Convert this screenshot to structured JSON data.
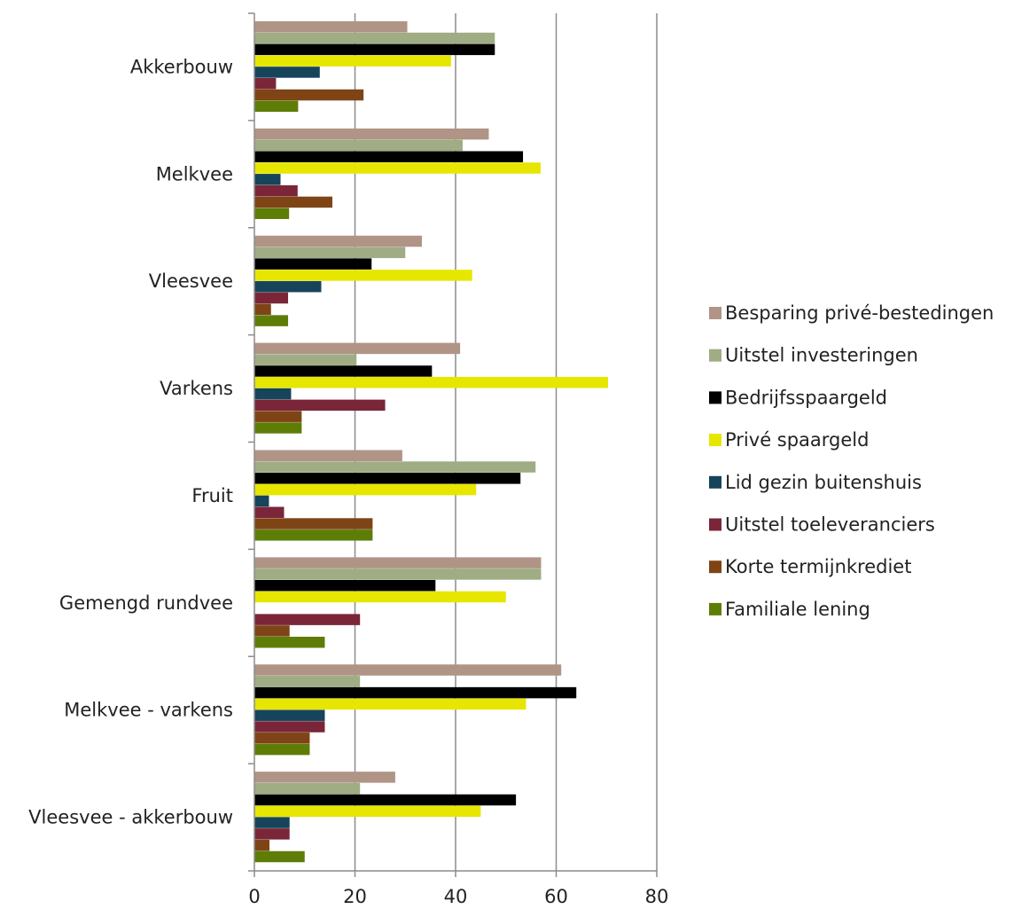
{
  "chart_data": {
    "type": "bar",
    "orientation": "horizontal",
    "categories": [
      "Akkerbouw",
      "Melkvee",
      "Vleesvee",
      "Varkens",
      "Fruit",
      "Gemengd rundvee",
      "Melkvee - varkens",
      "Vleesvee - akkerbouw"
    ],
    "series": [
      {
        "name": "Besparing privé-bestedingen",
        "color": "#b09486",
        "values": [
          30.4,
          46.6,
          33.3,
          40.9,
          29.4,
          57,
          61,
          28
        ]
      },
      {
        "name": "Uitstel investeringen",
        "color": "#9fac84",
        "values": [
          47.8,
          41.4,
          30,
          20.3,
          55.9,
          57,
          21,
          21
        ]
      },
      {
        "name": "Bedrijfsspaargeld",
        "color": "#000000",
        "values": [
          47.8,
          53.4,
          23.3,
          35.3,
          52.9,
          36,
          64,
          52
        ]
      },
      {
        "name": "Privé spaargeld",
        "color": "#e6e600",
        "values": [
          39.1,
          56.9,
          43.3,
          70.3,
          44.1,
          50,
          54,
          45
        ]
      },
      {
        "name": "Lid gezin buitenshuis",
        "color": "#16445a",
        "values": [
          13,
          5.2,
          13.3,
          7.3,
          2.9,
          0,
          14,
          7
        ]
      },
      {
        "name": "Uitstel toeleveranciers",
        "color": "#7a2638",
        "values": [
          4.3,
          8.6,
          6.7,
          26,
          5.9,
          21,
          14,
          7
        ]
      },
      {
        "name": "Korte termijnkrediet",
        "color": "#7e4416",
        "values": [
          21.7,
          15.5,
          3.3,
          9.4,
          23.5,
          7,
          11,
          3
        ]
      },
      {
        "name": "Familiale lening",
        "color": "#5e7d07",
        "values": [
          8.7,
          6.9,
          6.7,
          9.4,
          23.5,
          14,
          11,
          10
        ]
      }
    ],
    "xlim": [
      0,
      80
    ],
    "xticks": [
      0,
      20,
      40,
      60,
      80
    ],
    "grid": true,
    "legend_position": "right",
    "title": "",
    "xlabel": "",
    "ylabel": ""
  }
}
